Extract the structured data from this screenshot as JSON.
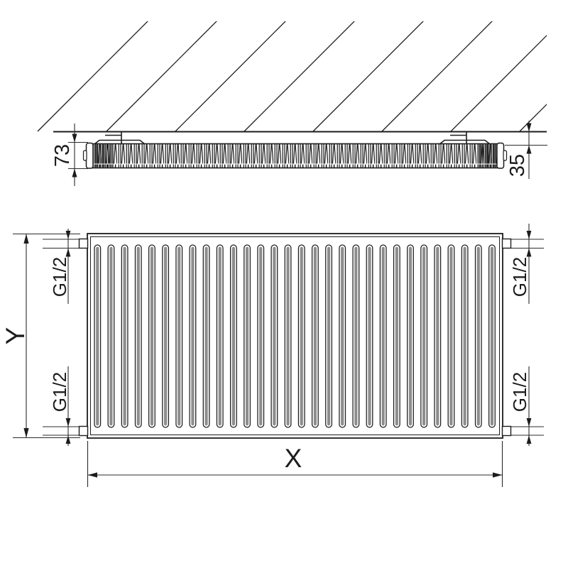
{
  "title": "Panel radiator technical dimension drawing",
  "side_view": {
    "depth_label": "73",
    "wall_gap_label": "35"
  },
  "front_view": {
    "height_label": "Y",
    "width_label": "X",
    "fin_count": 30,
    "connections": {
      "top_left": "G1/2",
      "bottom_left": "G1/2",
      "top_right": "G1/2",
      "bottom_right": "G1/2"
    }
  },
  "colors": {
    "line": "#1c1c1c",
    "dim_line": "#2b2b2b",
    "fin_fill": "#8d8d8d"
  }
}
